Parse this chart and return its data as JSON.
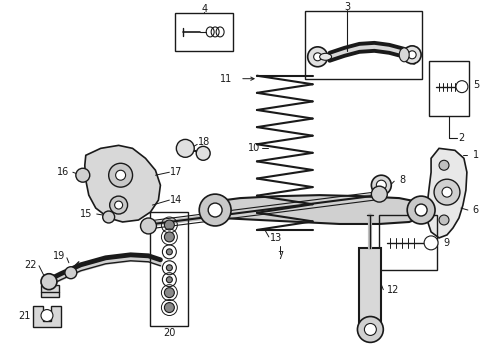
{
  "bg_color": "#ffffff",
  "fig_width": 4.89,
  "fig_height": 3.6,
  "dpi": 100,
  "line_color": "#1a1a1a",
  "text_color": "#1a1a1a",
  "font_size": 7.0
}
